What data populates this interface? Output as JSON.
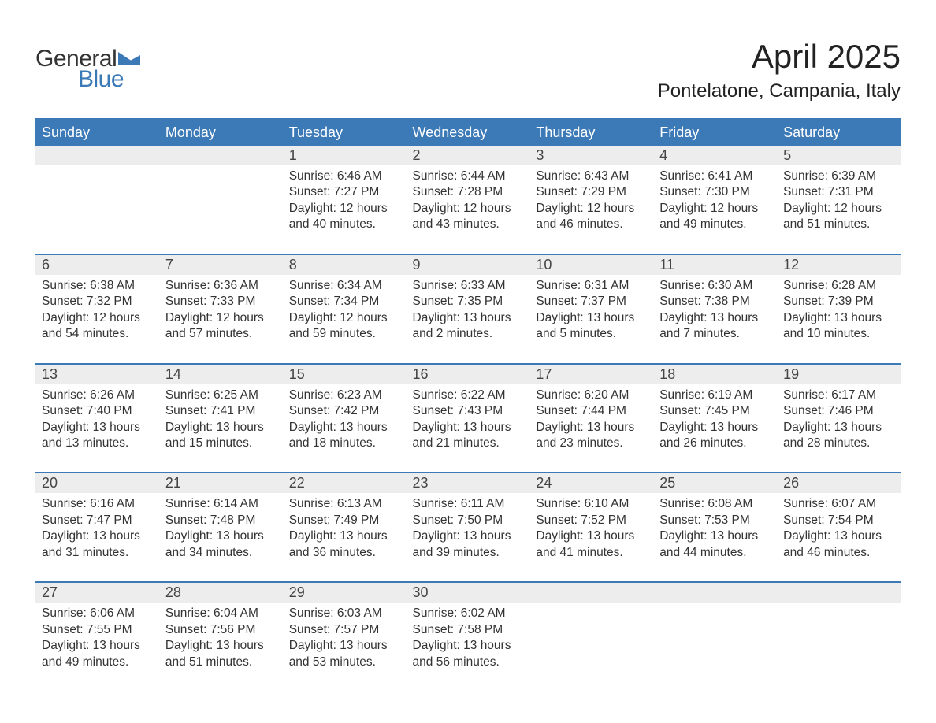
{
  "logo": {
    "text1": "General",
    "text2": "Blue",
    "tri_color": "#3b79b7"
  },
  "title": "April 2025",
  "location": "Pontelatone, Campania, Italy",
  "colors": {
    "header_bg": "#3b79b7",
    "header_text": "#ffffff",
    "daynum_bg": "#ededed",
    "row_border": "#3b79b7",
    "body_text": "#333333",
    "background": "#ffffff"
  },
  "day_headers": [
    "Sunday",
    "Monday",
    "Tuesday",
    "Wednesday",
    "Thursday",
    "Friday",
    "Saturday"
  ],
  "weeks": [
    [
      null,
      null,
      {
        "n": "1",
        "sr": "6:46 AM",
        "ss": "7:27 PM",
        "dl": "12 hours and 40 minutes."
      },
      {
        "n": "2",
        "sr": "6:44 AM",
        "ss": "7:28 PM",
        "dl": "12 hours and 43 minutes."
      },
      {
        "n": "3",
        "sr": "6:43 AM",
        "ss": "7:29 PM",
        "dl": "12 hours and 46 minutes."
      },
      {
        "n": "4",
        "sr": "6:41 AM",
        "ss": "7:30 PM",
        "dl": "12 hours and 49 minutes."
      },
      {
        "n": "5",
        "sr": "6:39 AM",
        "ss": "7:31 PM",
        "dl": "12 hours and 51 minutes."
      }
    ],
    [
      {
        "n": "6",
        "sr": "6:38 AM",
        "ss": "7:32 PM",
        "dl": "12 hours and 54 minutes."
      },
      {
        "n": "7",
        "sr": "6:36 AM",
        "ss": "7:33 PM",
        "dl": "12 hours and 57 minutes."
      },
      {
        "n": "8",
        "sr": "6:34 AM",
        "ss": "7:34 PM",
        "dl": "12 hours and 59 minutes."
      },
      {
        "n": "9",
        "sr": "6:33 AM",
        "ss": "7:35 PM",
        "dl": "13 hours and 2 minutes."
      },
      {
        "n": "10",
        "sr": "6:31 AM",
        "ss": "7:37 PM",
        "dl": "13 hours and 5 minutes."
      },
      {
        "n": "11",
        "sr": "6:30 AM",
        "ss": "7:38 PM",
        "dl": "13 hours and 7 minutes."
      },
      {
        "n": "12",
        "sr": "6:28 AM",
        "ss": "7:39 PM",
        "dl": "13 hours and 10 minutes."
      }
    ],
    [
      {
        "n": "13",
        "sr": "6:26 AM",
        "ss": "7:40 PM",
        "dl": "13 hours and 13 minutes."
      },
      {
        "n": "14",
        "sr": "6:25 AM",
        "ss": "7:41 PM",
        "dl": "13 hours and 15 minutes."
      },
      {
        "n": "15",
        "sr": "6:23 AM",
        "ss": "7:42 PM",
        "dl": "13 hours and 18 minutes."
      },
      {
        "n": "16",
        "sr": "6:22 AM",
        "ss": "7:43 PM",
        "dl": "13 hours and 21 minutes."
      },
      {
        "n": "17",
        "sr": "6:20 AM",
        "ss": "7:44 PM",
        "dl": "13 hours and 23 minutes."
      },
      {
        "n": "18",
        "sr": "6:19 AM",
        "ss": "7:45 PM",
        "dl": "13 hours and 26 minutes."
      },
      {
        "n": "19",
        "sr": "6:17 AM",
        "ss": "7:46 PM",
        "dl": "13 hours and 28 minutes."
      }
    ],
    [
      {
        "n": "20",
        "sr": "6:16 AM",
        "ss": "7:47 PM",
        "dl": "13 hours and 31 minutes."
      },
      {
        "n": "21",
        "sr": "6:14 AM",
        "ss": "7:48 PM",
        "dl": "13 hours and 34 minutes."
      },
      {
        "n": "22",
        "sr": "6:13 AM",
        "ss": "7:49 PM",
        "dl": "13 hours and 36 minutes."
      },
      {
        "n": "23",
        "sr": "6:11 AM",
        "ss": "7:50 PM",
        "dl": "13 hours and 39 minutes."
      },
      {
        "n": "24",
        "sr": "6:10 AM",
        "ss": "7:52 PM",
        "dl": "13 hours and 41 minutes."
      },
      {
        "n": "25",
        "sr": "6:08 AM",
        "ss": "7:53 PM",
        "dl": "13 hours and 44 minutes."
      },
      {
        "n": "26",
        "sr": "6:07 AM",
        "ss": "7:54 PM",
        "dl": "13 hours and 46 minutes."
      }
    ],
    [
      {
        "n": "27",
        "sr": "6:06 AM",
        "ss": "7:55 PM",
        "dl": "13 hours and 49 minutes."
      },
      {
        "n": "28",
        "sr": "6:04 AM",
        "ss": "7:56 PM",
        "dl": "13 hours and 51 minutes."
      },
      {
        "n": "29",
        "sr": "6:03 AM",
        "ss": "7:57 PM",
        "dl": "13 hours and 53 minutes."
      },
      {
        "n": "30",
        "sr": "6:02 AM",
        "ss": "7:58 PM",
        "dl": "13 hours and 56 minutes."
      },
      null,
      null,
      null
    ]
  ],
  "labels": {
    "sunrise": "Sunrise: ",
    "sunset": "Sunset: ",
    "daylight": "Daylight: "
  }
}
